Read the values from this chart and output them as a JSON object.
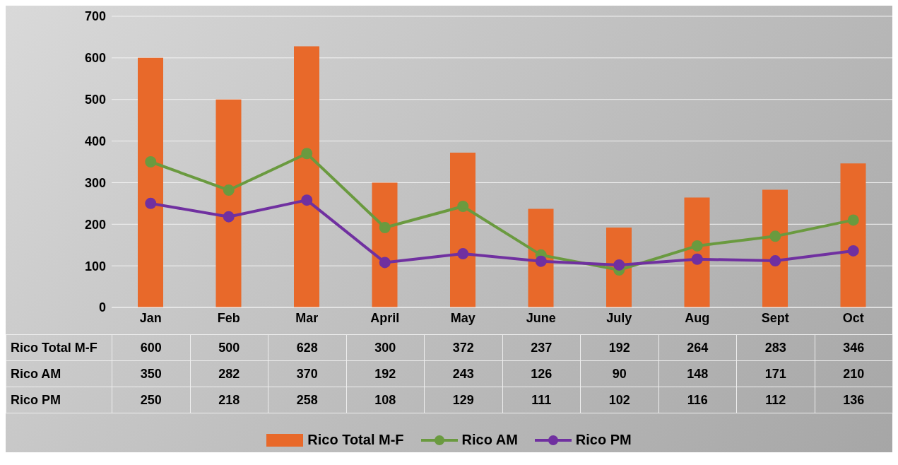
{
  "chart_data": {
    "type": "bar",
    "categories": [
      "Jan",
      "Feb",
      "Mar",
      "April",
      "May",
      "June",
      "July",
      "Aug",
      "Sept",
      "Oct"
    ],
    "series": [
      {
        "name": "Rico Total M-F",
        "color": "#e8692a",
        "values": [
          600,
          500,
          628,
          300,
          372,
          237,
          192,
          264,
          283,
          346
        ]
      },
      {
        "name": "Rico AM",
        "type": "line",
        "color": "#6a9a3f",
        "values": [
          350,
          282,
          370,
          192,
          243,
          126,
          90,
          148,
          171,
          210
        ]
      },
      {
        "name": "Rico PM",
        "type": "line",
        "color": "#7030a0",
        "values": [
          250,
          218,
          258,
          108,
          129,
          111,
          102,
          116,
          112,
          136
        ]
      }
    ],
    "ylim": [
      0,
      700
    ],
    "yticks": [
      0,
      100,
      200,
      300,
      400,
      500,
      600,
      700
    ],
    "grid": "y",
    "legend": "bottom",
    "marker": "circle",
    "line_style": "solid",
    "data_labels": true
  }
}
